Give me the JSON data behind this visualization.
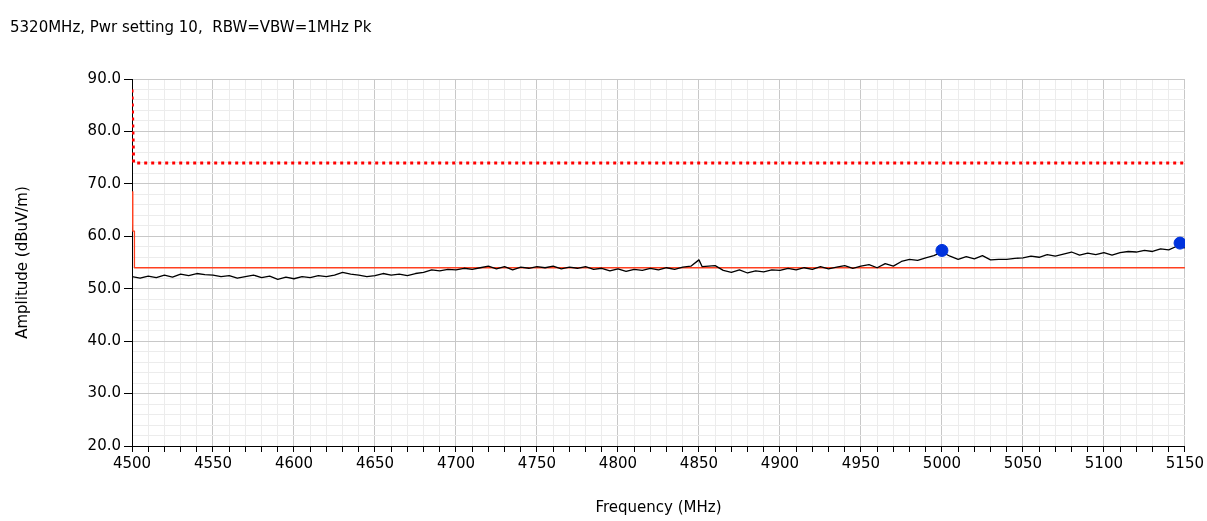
{
  "chart_data": {
    "type": "line",
    "title": "5320MHz, Pwr setting 10,  RBW=VBW=1MHz Pk",
    "xlabel": "Frequency (MHz)",
    "ylabel": "Amplitude (dBuV/m)",
    "xlim": [
      4500,
      5150
    ],
    "xticks": [
      4500,
      {
        "value": 4510,
        "label": null
      },
      {
        "value": 4520,
        "label": null
      },
      {
        "value": 4530,
        "label": null
      },
      {
        "value": 4540,
        "label": null
      },
      4550,
      {
        "value": 4560,
        "label": null
      },
      {
        "value": 4570,
        "label": null
      },
      {
        "value": 4580,
        "label": null
      },
      {
        "value": 4590,
        "label": null
      },
      4600,
      {
        "value": 4610,
        "label": null
      },
      {
        "value": 4620,
        "label": null
      },
      {
        "value": 4630,
        "label": null
      },
      {
        "value": 4640,
        "label": null
      },
      4650,
      {
        "value": 4660,
        "label": null
      },
      {
        "value": 4670,
        "label": null
      },
      {
        "value": 4680,
        "label": null
      },
      {
        "value": 4690,
        "label": null
      },
      4700,
      {
        "value": 4710,
        "label": null
      },
      {
        "value": 4720,
        "label": null
      },
      {
        "value": 4730,
        "label": null
      },
      {
        "value": 4740,
        "label": null
      },
      4750,
      {
        "value": 4760,
        "label": null
      },
      {
        "value": 4770,
        "label": null
      },
      {
        "value": 4780,
        "label": null
      },
      {
        "value": 4790,
        "label": null
      },
      4800,
      {
        "value": 4810,
        "label": null
      },
      {
        "value": 4820,
        "label": null
      },
      {
        "value": 4830,
        "label": null
      },
      {
        "value": 4840,
        "label": null
      },
      4850,
      {
        "value": 4860,
        "label": null
      },
      {
        "value": 4870,
        "label": null
      },
      {
        "value": 4880,
        "label": null
      },
      {
        "value": 4890,
        "label": null
      },
      4900,
      {
        "value": 4910,
        "label": null
      },
      {
        "value": 4920,
        "label": null
      },
      {
        "value": 4930,
        "label": null
      },
      {
        "value": 4940,
        "label": null
      },
      4950,
      {
        "value": 4960,
        "label": null
      },
      {
        "value": 4970,
        "label": null
      },
      {
        "value": 4980,
        "label": null
      },
      {
        "value": 4990,
        "label": null
      },
      5000,
      {
        "value": 5010,
        "label": null
      },
      {
        "value": 5020,
        "label": null
      },
      {
        "value": 5030,
        "label": null
      },
      {
        "value": 5040,
        "label": null
      },
      5050,
      {
        "value": 5060,
        "label": null
      },
      {
        "value": 5070,
        "label": null
      },
      {
        "value": 5080,
        "label": null
      },
      {
        "value": 5090,
        "label": null
      },
      5100,
      {
        "value": 5110,
        "label": null
      },
      {
        "value": 5120,
        "label": null
      },
      {
        "value": 5130,
        "label": null
      },
      {
        "value": 5140,
        "label": null
      },
      5150
    ],
    "ylim": [
      20,
      90
    ],
    "yticks": [
      {
        "value": 20,
        "label": "20.0"
      },
      {
        "value": 22,
        "label": null
      },
      {
        "value": 24,
        "label": null
      },
      {
        "value": 26,
        "label": null
      },
      {
        "value": 28,
        "label": null
      },
      {
        "value": 30,
        "label": "30.0"
      },
      {
        "value": 32,
        "label": null
      },
      {
        "value": 34,
        "label": null
      },
      {
        "value": 36,
        "label": null
      },
      {
        "value": 38,
        "label": null
      },
      {
        "value": 40,
        "label": "40.0"
      },
      {
        "value": 42,
        "label": null
      },
      {
        "value": 44,
        "label": null
      },
      {
        "value": 46,
        "label": null
      },
      {
        "value": 48,
        "label": null
      },
      {
        "value": 50,
        "label": "50.0"
      },
      {
        "value": 52,
        "label": null
      },
      {
        "value": 54,
        "label": null
      },
      {
        "value": 56,
        "label": null
      },
      {
        "value": 58,
        "label": null
      },
      {
        "value": 60,
        "label": "60.0"
      },
      {
        "value": 62,
        "label": null
      },
      {
        "value": 64,
        "label": null
      },
      {
        "value": 66,
        "label": null
      },
      {
        "value": 68,
        "label": null
      },
      {
        "value": 70,
        "label": "70.0"
      },
      {
        "value": 72,
        "label": null
      },
      {
        "value": 74,
        "label": null
      },
      {
        "value": 76,
        "label": null
      },
      {
        "value": 78,
        "label": null
      },
      {
        "value": 80,
        "label": "80.0"
      },
      {
        "value": 82,
        "label": null
      },
      {
        "value": 84,
        "label": null
      },
      {
        "value": 86,
        "label": null
      },
      {
        "value": 88,
        "label": null
      },
      {
        "value": 90,
        "label": "90.0"
      }
    ],
    "grid": true,
    "legend": false,
    "series": [
      {
        "line_style": "dotted",
        "color": "#ff0000",
        "x": [
          4500,
          4501,
          5150
        ],
        "values": [
          88,
          74,
          74
        ]
      },
      {
        "line_style": "solid",
        "color": "#ff4020",
        "x": [
          4500,
          4500.5,
          4501.5,
          4501.5,
          5150
        ],
        "values": [
          68.5,
          61,
          61,
          54,
          54
        ]
      },
      {
        "line_style": "solid",
        "color": "#000000",
        "x": [
          4500,
          4505,
          4510,
          4515,
          4520,
          4525,
          4530,
          4535,
          4540,
          4545,
          4550,
          4555,
          4560,
          4565,
          4570,
          4575,
          4580,
          4585,
          4590,
          4595,
          4600,
          4605,
          4610,
          4615,
          4620,
          4625,
          4630,
          4635,
          4640,
          4645,
          4650,
          4655,
          4660,
          4665,
          4670,
          4675,
          4680,
          4685,
          4690,
          4695,
          4700,
          4705,
          4710,
          4715,
          4720,
          4725,
          4730,
          4735,
          4740,
          4745,
          4750,
          4755,
          4760,
          4765,
          4770,
          4775,
          4780,
          4785,
          4790,
          4795,
          4800,
          4805,
          4810,
          4815,
          4820,
          4825,
          4830,
          4835,
          4840,
          4845,
          4850,
          4852,
          4860,
          4865,
          4870,
          4875,
          4880,
          4885,
          4890,
          4895,
          4900,
          4905,
          4910,
          4915,
          4920,
          4925,
          4930,
          4935,
          4940,
          4945,
          4950,
          4955,
          4960,
          4965,
          4970,
          4975,
          4980,
          4985,
          4990,
          4995,
          5000,
          5005,
          5010,
          5015,
          5020,
          5025,
          5030,
          5035,
          5040,
          5045,
          5050,
          5055,
          5060,
          5065,
          5070,
          5075,
          5080,
          5085,
          5090,
          5095,
          5100,
          5105,
          5110,
          5115,
          5120,
          5125,
          5130,
          5135,
          5140,
          5145,
          5150
        ],
        "values": [
          52.3,
          52.0,
          52.4,
          52.1,
          52.6,
          52.2,
          52.8,
          52.5,
          52.9,
          52.7,
          52.6,
          52.3,
          52.5,
          52.0,
          52.3,
          52.6,
          52.1,
          52.4,
          51.8,
          52.2,
          51.9,
          52.3,
          52.1,
          52.5,
          52.3,
          52.6,
          53.1,
          52.8,
          52.6,
          52.3,
          52.5,
          52.9,
          52.6,
          52.8,
          52.5,
          52.9,
          53.1,
          53.6,
          53.4,
          53.7,
          53.6,
          53.9,
          53.7,
          54.0,
          54.3,
          53.8,
          54.2,
          53.6,
          54.1,
          53.9,
          54.2,
          54.0,
          54.3,
          53.8,
          54.1,
          53.9,
          54.2,
          53.7,
          53.9,
          53.4,
          53.8,
          53.3,
          53.7,
          53.5,
          53.9,
          53.6,
          54.0,
          53.7,
          54.1,
          54.3,
          55.5,
          54.2,
          54.4,
          53.5,
          53.1,
          53.6,
          53.0,
          53.4,
          53.2,
          53.6,
          53.5,
          53.9,
          53.6,
          54.0,
          53.7,
          54.2,
          53.8,
          54.1,
          54.4,
          53.9,
          54.3,
          54.6,
          54.0,
          54.8,
          54.3,
          55.2,
          55.6,
          55.4,
          55.9,
          56.3,
          57.0,
          56.2,
          55.6,
          56.1,
          55.7,
          56.3,
          55.5,
          55.6,
          55.6,
          55.8,
          55.9,
          56.2,
          56.0,
          56.5,
          56.2,
          56.6,
          57.0,
          56.4,
          56.8,
          56.5,
          56.9,
          56.4,
          56.9,
          57.1,
          57.0,
          57.3,
          57.1,
          57.6,
          57.4,
          58.1,
          57.8
        ]
      },
      {
        "type": "scatter",
        "marker": "circle",
        "color": "#0033dd",
        "x": [
          5000,
          5147
        ],
        "values": [
          57.3,
          58.7
        ]
      }
    ]
  }
}
